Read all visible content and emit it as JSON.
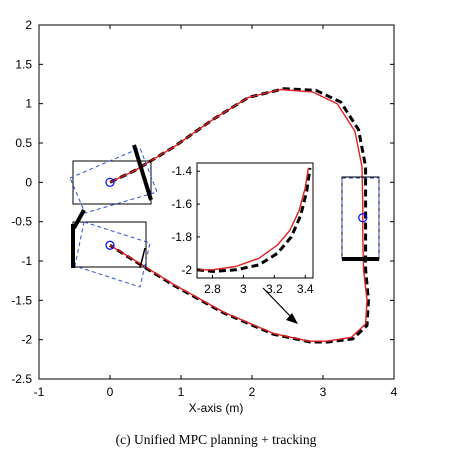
{
  "chart_data": {
    "type": "line",
    "title": "",
    "xlabel": "X-axis (m)",
    "ylabel": "",
    "xlim": [
      -1,
      4
    ],
    "ylim": [
      -2.5,
      2
    ],
    "xticks": [
      -1,
      0,
      1,
      2,
      3,
      4
    ],
    "yticks": [
      -2.5,
      -2,
      -1.5,
      -1,
      -0.5,
      0,
      0.5,
      1,
      1.5,
      2
    ],
    "caption": "(c) Unified MPC planning + tracking",
    "series": [
      {
        "style": "solid",
        "color": "#e02020",
        "x": [
          0,
          0.35,
          0.9,
          1.45,
          1.95,
          2.4,
          2.85,
          3.2,
          3.45,
          3.55,
          3.56,
          3.56,
          3.57,
          3.62,
          3.6,
          3.4,
          3.05,
          2.8,
          2.3,
          1.6,
          0.9,
          0.4,
          0
        ],
        "y": [
          0,
          0.15,
          0.45,
          0.8,
          1.08,
          1.18,
          1.15,
          1.0,
          0.65,
          0.2,
          -0.3,
          -0.7,
          -1.1,
          -1.5,
          -1.8,
          -1.97,
          -2.02,
          -2.02,
          -1.92,
          -1.65,
          -1.3,
          -1.02,
          -0.8
        ]
      },
      {
        "style": "dashed",
        "color": "#000000",
        "x": [
          0,
          0.35,
          0.9,
          1.45,
          1.95,
          2.45,
          2.9,
          3.25,
          3.5,
          3.6,
          3.6,
          3.6,
          3.6,
          3.64,
          3.62,
          3.42,
          3.07,
          2.82,
          2.3,
          1.6,
          0.9,
          0.4,
          0
        ],
        "y": [
          0,
          0.15,
          0.45,
          0.8,
          1.08,
          1.19,
          1.17,
          1.02,
          0.67,
          0.2,
          -0.3,
          -0.7,
          -1.1,
          -1.5,
          -1.82,
          -1.99,
          -2.03,
          -2.03,
          -1.93,
          -1.66,
          -1.31,
          -1.03,
          -0.8
        ]
      }
    ],
    "markers": [
      {
        "shape": "circle",
        "color": "#0000ff",
        "x": 0,
        "y": 0
      },
      {
        "shape": "circle",
        "color": "#0000ff",
        "x": 0,
        "y": -0.8
      },
      {
        "shape": "circle",
        "color": "#0000ff",
        "x": 3.56,
        "y": -0.45
      }
    ],
    "inset": {
      "xlim": [
        2.7,
        3.45
      ],
      "ylim": [
        -2.05,
        -1.35
      ],
      "xticks": [
        "2.8",
        "3",
        "3.2",
        "3.4"
      ],
      "yticks": [
        "-1.4",
        "-1.6",
        "-1.8",
        "-2"
      ],
      "series": [
        {
          "style": "solid",
          "color": "#e02020",
          "x": [
            2.7,
            2.8,
            2.95,
            3.1,
            3.22,
            3.3,
            3.36,
            3.4,
            3.42
          ],
          "y": [
            -2.0,
            -2.0,
            -1.98,
            -1.93,
            -1.85,
            -1.76,
            -1.64,
            -1.5,
            -1.38
          ]
        },
        {
          "style": "dashed",
          "color": "#000000",
          "x": [
            2.7,
            2.8,
            2.95,
            3.1,
            3.22,
            3.31,
            3.37,
            3.41,
            3.43
          ],
          "y": [
            -2.0,
            -2.01,
            -2.0,
            -1.97,
            -1.9,
            -1.8,
            -1.67,
            -1.52,
            -1.38
          ]
        }
      ]
    }
  }
}
